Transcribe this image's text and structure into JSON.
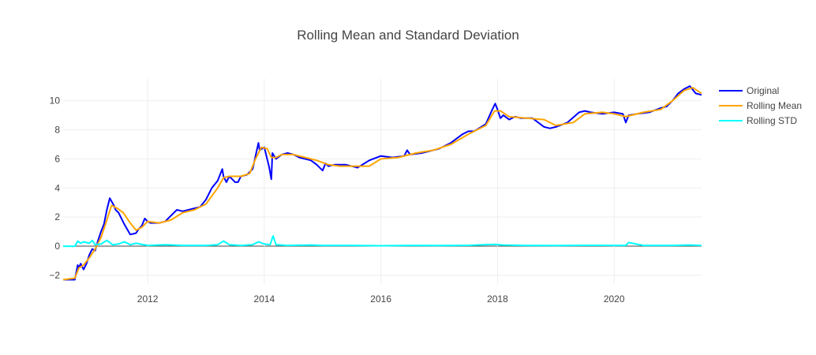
{
  "chart_data": {
    "type": "line",
    "title": "Rolling Mean and Standard Deviation",
    "xlabel": "",
    "ylabel": "",
    "x_range": [
      2010.55,
      2021.5
    ],
    "ylim": [
      -2.6,
      11.5
    ],
    "x_ticks": [
      2012,
      2014,
      2016,
      2018,
      2020
    ],
    "x_tick_labels": [
      "2012",
      "2014",
      "2016",
      "2018",
      "2020"
    ],
    "y_ticks": [
      -2,
      0,
      2,
      4,
      6,
      8,
      10
    ],
    "y_tick_labels": [
      "−2",
      "0",
      "2",
      "4",
      "6",
      "8",
      "10"
    ],
    "grid": true,
    "legend_position": "top-right",
    "series": [
      {
        "name": "Original",
        "color": "#0000ff",
        "x": [
          2010.55,
          2010.75,
          2010.8,
          2010.82,
          2010.85,
          2010.9,
          2010.95,
          2011.0,
          2011.05,
          2011.1,
          2011.15,
          2011.2,
          2011.25,
          2011.3,
          2011.35,
          2011.42,
          2011.45,
          2011.5,
          2011.55,
          2011.6,
          2011.7,
          2011.8,
          2011.85,
          2011.9,
          2011.95,
          2012.0,
          2012.05,
          2012.1,
          2012.2,
          2012.3,
          2012.4,
          2012.5,
          2012.6,
          2012.7,
          2012.8,
          2012.9,
          2013.0,
          2013.1,
          2013.2,
          2013.28,
          2013.3,
          2013.35,
          2013.4,
          2013.45,
          2013.5,
          2013.55,
          2013.6,
          2013.7,
          2013.8,
          2013.85,
          2013.9,
          2013.92,
          2014.0,
          2014.08,
          2014.12,
          2014.14,
          2014.2,
          2014.3,
          2014.4,
          2014.5,
          2014.6,
          2014.7,
          2014.8,
          2014.9,
          2015.0,
          2015.05,
          2015.1,
          2015.2,
          2015.4,
          2015.6,
          2015.8,
          2016.0,
          2016.2,
          2016.4,
          2016.45,
          2016.5,
          2016.7,
          2016.9,
          2017.0,
          2017.2,
          2017.4,
          2017.5,
          2017.6,
          2017.8,
          2017.9,
          2017.96,
          2018.0,
          2018.05,
          2018.1,
          2018.2,
          2018.3,
          2018.4,
          2018.6,
          2018.8,
          2018.9,
          2019.0,
          2019.2,
          2019.4,
          2019.5,
          2019.6,
          2019.8,
          2020.0,
          2020.15,
          2020.2,
          2020.25,
          2020.4,
          2020.6,
          2020.8,
          2020.9,
          2021.0,
          2021.1,
          2021.2,
          2021.3,
          2021.4,
          2021.5
        ],
        "y": [
          -2.3,
          -2.3,
          -1.3,
          -1.5,
          -1.2,
          -1.6,
          -1.2,
          -0.6,
          -0.2,
          -0.3,
          0.4,
          1.0,
          1.5,
          2.5,
          3.3,
          2.8,
          2.5,
          2.3,
          1.9,
          1.5,
          0.8,
          0.9,
          1.2,
          1.4,
          1.9,
          1.7,
          1.6,
          1.6,
          1.6,
          1.7,
          2.1,
          2.5,
          2.4,
          2.5,
          2.6,
          2.7,
          3.2,
          4.0,
          4.5,
          5.3,
          4.8,
          4.4,
          4.8,
          4.6,
          4.4,
          4.4,
          4.8,
          4.9,
          5.3,
          6.2,
          7.1,
          6.6,
          6.8,
          5.5,
          4.6,
          6.4,
          6.0,
          6.3,
          6.4,
          6.3,
          6.1,
          6.0,
          5.9,
          5.6,
          5.2,
          5.7,
          5.5,
          5.6,
          5.6,
          5.4,
          5.9,
          6.2,
          6.1,
          6.2,
          6.6,
          6.3,
          6.4,
          6.6,
          6.7,
          7.1,
          7.7,
          7.9,
          7.9,
          8.4,
          9.3,
          9.8,
          9.4,
          8.8,
          9.0,
          8.7,
          8.9,
          8.8,
          8.8,
          8.2,
          8.1,
          8.2,
          8.5,
          9.2,
          9.3,
          9.2,
          9.1,
          9.2,
          9.1,
          8.5,
          9.0,
          9.1,
          9.2,
          9.5,
          9.6,
          10.0,
          10.5,
          10.8,
          11.0,
          10.5,
          10.4
        ]
      },
      {
        "name": "Rolling Mean",
        "color": "#ffa500",
        "x": [
          2010.55,
          2010.75,
          2010.82,
          2010.9,
          2011.0,
          2011.1,
          2011.2,
          2011.3,
          2011.38,
          2011.48,
          2011.58,
          2011.7,
          2011.8,
          2011.9,
          2012.0,
          2012.2,
          2012.4,
          2012.6,
          2012.8,
          2013.0,
          2013.2,
          2013.3,
          2013.4,
          2013.6,
          2013.75,
          2013.85,
          2013.95,
          2014.05,
          2014.12,
          2014.2,
          2014.3,
          2014.5,
          2014.7,
          2014.9,
          2015.1,
          2015.3,
          2015.6,
          2015.8,
          2016.0,
          2016.3,
          2016.6,
          2016.9,
          2017.2,
          2017.5,
          2017.8,
          2017.95,
          2018.05,
          2018.2,
          2018.5,
          2018.8,
          2019.0,
          2019.3,
          2019.5,
          2019.8,
          2020.0,
          2020.2,
          2020.5,
          2020.8,
          2021.0,
          2021.2,
          2021.35,
          2021.5
        ],
        "y": [
          -2.3,
          -2.2,
          -1.5,
          -1.3,
          -0.8,
          -0.2,
          0.6,
          1.8,
          2.8,
          2.6,
          2.3,
          1.6,
          1.1,
          1.3,
          1.7,
          1.6,
          1.8,
          2.3,
          2.5,
          2.9,
          4.0,
          4.7,
          4.8,
          4.8,
          5.0,
          6.0,
          6.8,
          6.7,
          6.1,
          6.1,
          6.3,
          6.3,
          6.1,
          5.9,
          5.6,
          5.5,
          5.5,
          5.5,
          6.0,
          6.1,
          6.4,
          6.6,
          7.0,
          7.7,
          8.3,
          9.3,
          9.3,
          8.9,
          8.8,
          8.7,
          8.3,
          8.5,
          9.1,
          9.2,
          9.1,
          8.9,
          9.2,
          9.4,
          10.0,
          10.7,
          10.9,
          10.5
        ]
      },
      {
        "name": "Rolling STD",
        "color": "#00ffff",
        "x": [
          2010.55,
          2010.75,
          2010.8,
          2010.85,
          2010.9,
          2011.0,
          2011.05,
          2011.1,
          2011.2,
          2011.3,
          2011.35,
          2011.4,
          2011.5,
          2011.6,
          2011.7,
          2011.8,
          2012.0,
          2012.3,
          2012.6,
          2013.0,
          2013.2,
          2013.3,
          2013.4,
          2013.6,
          2013.8,
          2013.9,
          2014.0,
          2014.1,
          2014.15,
          2014.2,
          2014.4,
          2014.8,
          2015.0,
          2015.5,
          2016.0,
          2016.5,
          2017.0,
          2017.5,
          2017.95,
          2018.1,
          2018.5,
          2019.0,
          2019.5,
          2020.0,
          2020.2,
          2020.25,
          2020.5,
          2021.0,
          2021.3,
          2021.5
        ],
        "y": [
          0.0,
          0.0,
          0.35,
          0.2,
          0.3,
          0.2,
          0.4,
          0.1,
          0.15,
          0.4,
          0.25,
          0.1,
          0.15,
          0.3,
          0.1,
          0.2,
          0.05,
          0.1,
          0.05,
          0.05,
          0.1,
          0.35,
          0.1,
          0.05,
          0.1,
          0.3,
          0.15,
          0.1,
          0.7,
          0.1,
          0.05,
          0.08,
          0.05,
          0.05,
          0.03,
          0.05,
          0.04,
          0.06,
          0.12,
          0.08,
          0.05,
          0.04,
          0.06,
          0.05,
          0.05,
          0.25,
          0.05,
          0.05,
          0.08,
          0.05
        ]
      }
    ]
  }
}
